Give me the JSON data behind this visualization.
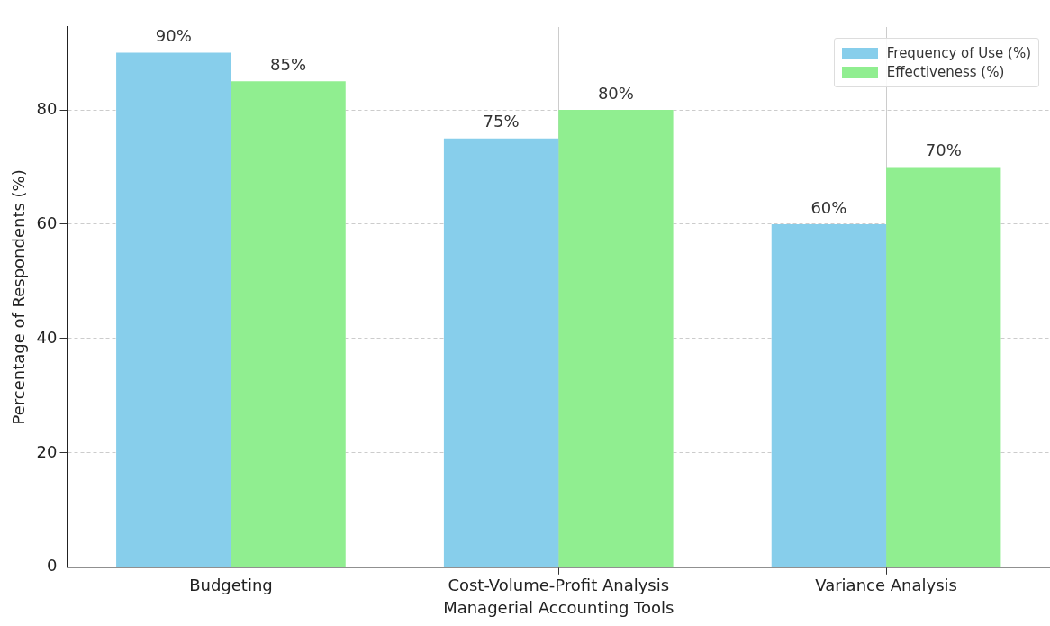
{
  "chart_data": {
    "type": "bar",
    "xlabel": "Managerial Accounting Tools",
    "ylabel": "Percentage of Respondents (%)",
    "categories": [
      "Budgeting",
      "Cost-Volume-Profit Analysis",
      "Variance Analysis"
    ],
    "series": [
      {
        "name": "Frequency of Use (%)",
        "color": "#87ceeb",
        "values": [
          90,
          75,
          60
        ],
        "value_labels": [
          "90%",
          "75%",
          "60%"
        ]
      },
      {
        "name": "Effectiveness (%)",
        "color": "#90ee90",
        "values": [
          85,
          80,
          70
        ],
        "value_labels": [
          "85%",
          "80%",
          "70%"
        ]
      }
    ],
    "ylim": [
      0,
      94.5
    ],
    "yticks": [
      0,
      20,
      40,
      60,
      80
    ],
    "grid": true,
    "legend": "top right"
  }
}
